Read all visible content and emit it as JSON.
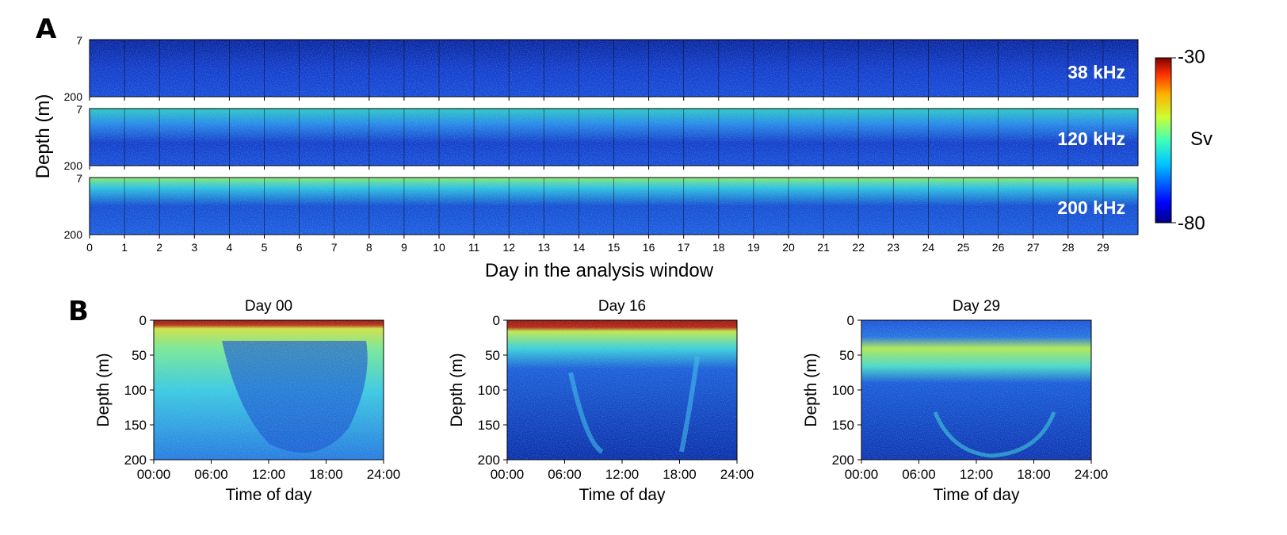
{
  "panel_a": {
    "letter": "A",
    "ylabel": "Depth (m)",
    "xlabel": "Day in the analysis window"
  },
  "panel_b": {
    "letter": "B"
  },
  "colorbar": {
    "title": "Sv",
    "max": "-30",
    "min": "-80"
  },
  "chart_data": [
    {
      "type": "heatmap",
      "panel": "A",
      "ylabel": "Depth (m)",
      "xlabel": "Day in the analysis window",
      "y_ticks": [
        "7",
        "200"
      ],
      "ylim": [
        7,
        200
      ],
      "x_ticks": [
        "0",
        "1",
        "2",
        "3",
        "4",
        "5",
        "6",
        "7",
        "8",
        "9",
        "10",
        "11",
        "12",
        "13",
        "14",
        "15",
        "16",
        "17",
        "18",
        "19",
        "20",
        "21",
        "22",
        "23",
        "24",
        "25",
        "26",
        "27",
        "28",
        "29"
      ],
      "xlim": [
        0,
        30
      ],
      "value_label": "Sv",
      "value_range": [
        -80,
        -30
      ],
      "colormap": "jet",
      "frequencies": [
        "38 kHz",
        "120 kHz",
        "200 kHz"
      ]
    },
    {
      "type": "heatmap",
      "panel": "B",
      "title": "Day 00",
      "xlabel": "Time of day",
      "ylabel": "Depth (m)",
      "x_ticks": [
        "00:00",
        "06:00",
        "12:00",
        "18:00",
        "24:00"
      ],
      "y_ticks": [
        "0",
        "50",
        "100",
        "150",
        "200"
      ],
      "ylim": [
        0,
        200
      ]
    },
    {
      "type": "heatmap",
      "panel": "B",
      "title": "Day 16",
      "xlabel": "Time of day",
      "ylabel": "Depth (m)",
      "x_ticks": [
        "00:00",
        "06:00",
        "12:00",
        "18:00",
        "24:00"
      ],
      "y_ticks": [
        "0",
        "50",
        "100",
        "150",
        "200"
      ],
      "ylim": [
        0,
        200
      ]
    },
    {
      "type": "heatmap",
      "panel": "B",
      "title": "Day 29",
      "xlabel": "Time of day",
      "ylabel": "Depth (m)",
      "x_ticks": [
        "00:00",
        "06:00",
        "12:00",
        "18:00",
        "24:00"
      ],
      "y_ticks": [
        "0",
        "50",
        "100",
        "150",
        "200"
      ],
      "ylim": [
        0,
        200
      ]
    }
  ],
  "colors": {
    "deep_blue": "#0a1e9c",
    "blue": "#1b4fe0",
    "cyan": "#27c7e8",
    "green_yellow": "#c8f040",
    "red": "#b01010"
  }
}
